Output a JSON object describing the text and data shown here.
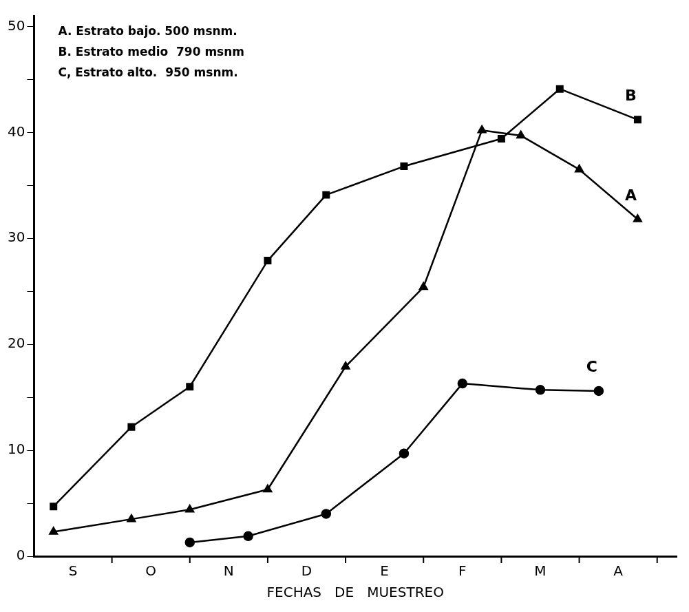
{
  "chart_data": {
    "type": "line",
    "xlabel": "FECHAS   DE   MUESTREO",
    "categories": [
      null,
      null,
      "S",
      null,
      null,
      null,
      "O",
      null,
      null,
      null,
      "N",
      null,
      null,
      null,
      "D",
      null,
      null,
      null,
      "E",
      null,
      null,
      null,
      "F",
      null,
      null,
      null,
      "M",
      null,
      null,
      null,
      "A",
      null,
      null,
      null
    ],
    "ylim": [
      0,
      51
    ],
    "yticks": [
      0,
      {
        "value": 5,
        "label": null
      },
      10,
      {
        "value": 15,
        "label": null
      },
      20,
      {
        "value": 25,
        "label": null
      },
      30,
      {
        "value": 35,
        "label": null
      },
      40,
      {
        "value": 45,
        "label": null
      },
      50
    ],
    "grid": false,
    "legend": false,
    "line_style": "solid",
    "annotations": [
      "A. Estrato bajo. 500 msnm.",
      "B. Estrato medio  790 msnm",
      "C, Estrato alto.  950 msnm."
    ],
    "series": [
      {
        "name": "A",
        "color": "#000000",
        "marker": "triangle",
        "values": [
          null,
          2.3,
          null,
          null,
          null,
          3.5,
          null,
          null,
          4.4,
          null,
          null,
          null,
          6.3,
          null,
          null,
          null,
          17.9,
          null,
          null,
          null,
          25.4,
          null,
          null,
          40.2,
          null,
          39.7,
          null,
          null,
          36.5,
          null,
          null,
          31.8,
          null,
          null
        ]
      },
      {
        "name": "B",
        "color": "#000000",
        "marker": "square",
        "values": [
          null,
          4.7,
          null,
          null,
          null,
          12.2,
          null,
          null,
          16.0,
          null,
          null,
          null,
          27.9,
          null,
          null,
          34.1,
          null,
          null,
          null,
          36.8,
          null,
          null,
          null,
          null,
          39.4,
          null,
          null,
          44.1,
          null,
          null,
          null,
          41.2,
          null,
          null
        ]
      },
      {
        "name": "C",
        "color": "#000000",
        "marker": "circle",
        "values": [
          null,
          null,
          null,
          null,
          null,
          null,
          null,
          null,
          1.3,
          null,
          null,
          1.9,
          null,
          null,
          null,
          4.0,
          null,
          null,
          null,
          9.7,
          null,
          null,
          16.3,
          null,
          null,
          null,
          15.7,
          null,
          null,
          15.6,
          null,
          null,
          null,
          null
        ]
      }
    ]
  }
}
